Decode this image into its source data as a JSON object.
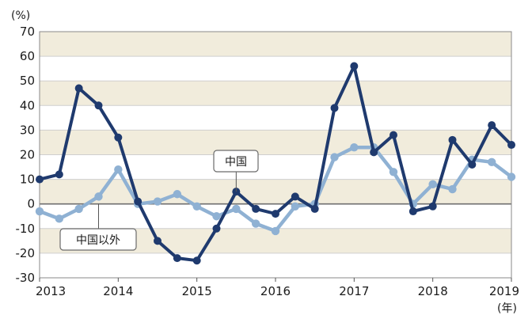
{
  "chart_data": {
    "type": "line",
    "y_unit": "(%)",
    "x_unit": "(年)",
    "ylim": [
      -30,
      70
    ],
    "yticks": [
      -30,
      -20,
      -10,
      0,
      10,
      20,
      30,
      40,
      50,
      60,
      70
    ],
    "xlim": [
      2013,
      2019
    ],
    "xticks": [
      "2013",
      "2014",
      "2015",
      "2016",
      "2017",
      "2018",
      "2019"
    ],
    "background_bands": true,
    "series": [
      {
        "name": "中国",
        "color": "#1f3a6e",
        "x": [
          2013.0,
          2013.25,
          2013.5,
          2013.75,
          2014.0,
          2014.25,
          2014.5,
          2014.75,
          2015.0,
          2015.25,
          2015.5,
          2015.75,
          2016.0,
          2016.25,
          2016.5,
          2016.75,
          2017.0,
          2017.25,
          2017.5,
          2017.75,
          2018.0,
          2018.25,
          2018.5,
          2018.75,
          2019.0
        ],
        "y": [
          10,
          12,
          47,
          40,
          27,
          1,
          -15,
          -22,
          -23,
          -10,
          5,
          -2,
          -4,
          3,
          -2,
          39,
          56,
          21,
          28,
          -3,
          -1,
          26,
          16,
          32,
          24
        ]
      },
      {
        "name": "中国以外",
        "color": "#8fb1d3",
        "x": [
          2013.0,
          2013.25,
          2013.5,
          2013.75,
          2014.0,
          2014.25,
          2014.5,
          2014.75,
          2015.0,
          2015.25,
          2015.5,
          2015.75,
          2016.0,
          2016.25,
          2016.5,
          2016.75,
          2017.0,
          2017.25,
          2017.5,
          2017.75,
          2018.0,
          2018.25,
          2018.5,
          2018.75,
          2019.0
        ],
        "y": [
          -3,
          -6,
          -2,
          3,
          14,
          0,
          1,
          4,
          -1,
          -5,
          -2,
          -8,
          -11,
          -1,
          0,
          19,
          23,
          23,
          13,
          0,
          8,
          6,
          18,
          17,
          11
        ]
      }
    ],
    "annotations": [
      {
        "text": "中国",
        "series": 0
      },
      {
        "text": "中国以外",
        "series": 1
      }
    ]
  }
}
